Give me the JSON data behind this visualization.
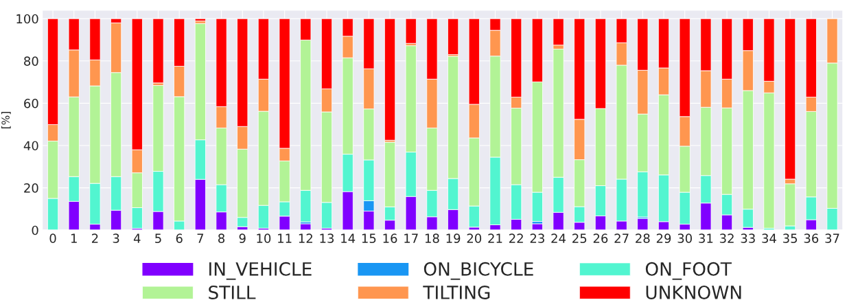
{
  "chart_data": {
    "type": "bar",
    "stacked": true,
    "ylabel": "[%]",
    "categories": [
      "0",
      "1",
      "2",
      "3",
      "4",
      "5",
      "6",
      "7",
      "8",
      "9",
      "10",
      "11",
      "12",
      "13",
      "14",
      "15",
      "16",
      "17",
      "18",
      "19",
      "20",
      "21",
      "22",
      "23",
      "24",
      "25",
      "26",
      "27",
      "28",
      "29",
      "30",
      "31",
      "32",
      "33",
      "34",
      "35",
      "36",
      "37"
    ],
    "series": [
      {
        "name": "IN_VEHICLE",
        "color": "#8000ff",
        "values": [
          0,
          13.6,
          2.8,
          9.4,
          0.8,
          8.8,
          0,
          24.0,
          8.6,
          1.6,
          0.9,
          6.6,
          3.0,
          0.9,
          18.2,
          9.0,
          4.7,
          15.9,
          6.3,
          9.7,
          1.4,
          2.5,
          5.1,
          3.0,
          8.4,
          3.7,
          6.7,
          4.3,
          5.5,
          4.0,
          2.8,
          12.8,
          7.2,
          1.3,
          0,
          0,
          4.9,
          0
        ]
      },
      {
        "name": "ON_BICYCLE",
        "color": "#1996f3",
        "values": [
          0,
          0,
          0,
          0,
          0,
          0,
          0,
          0,
          0,
          0,
          0,
          0,
          0.9,
          0,
          0,
          4.9,
          0,
          0,
          0,
          0,
          0,
          0,
          0,
          1.1,
          0,
          0,
          0,
          0,
          0.7,
          0,
          0,
          0,
          0,
          0,
          0,
          0,
          0,
          0
        ]
      },
      {
        "name": "ON_FOOT",
        "color": "#52f5d0",
        "values": [
          15.0,
          11.7,
          19.3,
          15.9,
          9.8,
          19.0,
          4.3,
          18.7,
          12.9,
          4.4,
          10.8,
          6.8,
          14.9,
          12.2,
          17.7,
          19.3,
          6.3,
          21.0,
          12.5,
          14.7,
          10.0,
          32.0,
          16.4,
          13.8,
          16.6,
          7.4,
          14.3,
          19.8,
          21.4,
          22.1,
          15.1,
          13.0,
          9.7,
          8.6,
          0.9,
          2.0,
          10.8,
          10.3
        ]
      },
      {
        "name": "STILL",
        "color": "#b2f396",
        "values": [
          27.1,
          37.7,
          46.1,
          49.2,
          16.5,
          40.6,
          58.8,
          55.0,
          26.8,
          32.3,
          44.5,
          19.3,
          71.1,
          42.8,
          45.6,
          24.1,
          30.6,
          50.3,
          29.5,
          57.8,
          32.2,
          47.8,
          36.2,
          52.2,
          60.6,
          22.2,
          36.5,
          53.9,
          27.3,
          37.9,
          21.8,
          32.3,
          40.9,
          56.1,
          64.0,
          19.9,
          40.4,
          68.7
        ]
      },
      {
        "name": "TILTING",
        "color": "#ff964f",
        "values": [
          7.8,
          22.2,
          12.3,
          23.5,
          10.9,
          1.2,
          14.4,
          1.2,
          10.1,
          10.7,
          15.2,
          6.0,
          0,
          10.9,
          10.2,
          19.0,
          0.9,
          1.1,
          23.1,
          0.8,
          15.9,
          12.2,
          5.2,
          0,
          1.9,
          19.1,
          0,
          10.6,
          20.7,
          12.7,
          14.0,
          17.3,
          13.6,
          18.9,
          5.5,
          2.2,
          6.8,
          21.0
        ]
      },
      {
        "name": "UNKNOWN",
        "color": "#ff0000",
        "values": [
          50.1,
          14.8,
          19.5,
          2.0,
          62.0,
          30.4,
          22.5,
          1.1,
          41.6,
          51.0,
          28.6,
          61.3,
          10.1,
          33.2,
          8.3,
          23.7,
          57.5,
          11.7,
          28.6,
          17.0,
          40.5,
          5.5,
          37.1,
          29.9,
          12.5,
          47.6,
          42.5,
          11.4,
          24.4,
          23.3,
          46.3,
          24.6,
          28.6,
          15.1,
          29.6,
          75.9,
          37.1,
          0
        ]
      }
    ],
    "ylim": [
      0,
      104
    ],
    "yticks": [
      0,
      20,
      40,
      60,
      80,
      100
    ],
    "grid": true,
    "legend": "bottom"
  }
}
